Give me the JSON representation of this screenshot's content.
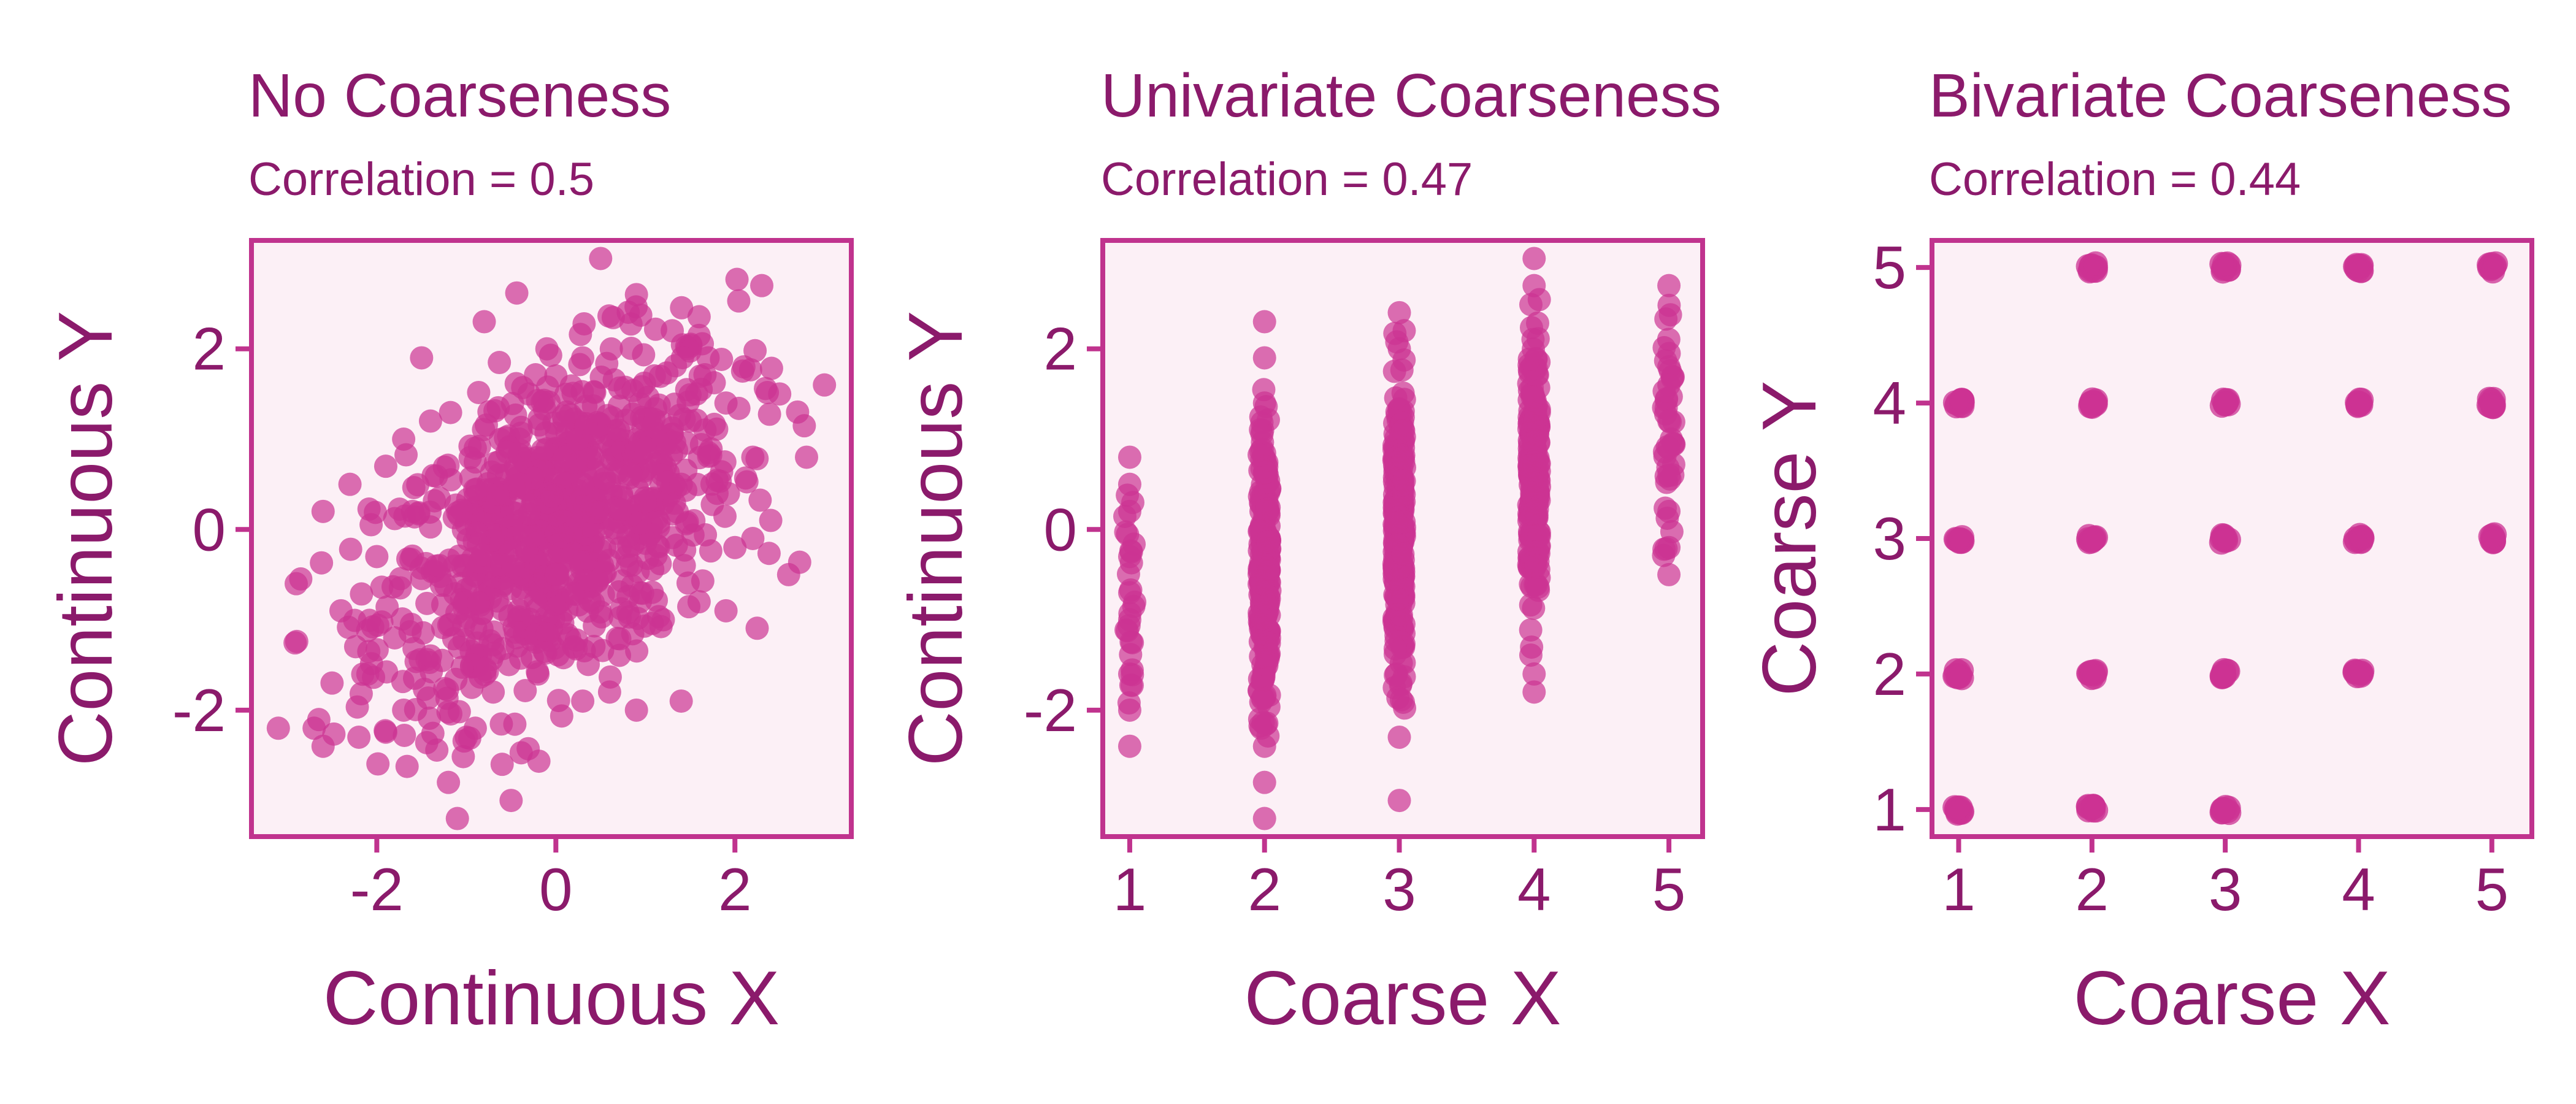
{
  "chart_data": [
    {
      "type": "scatter",
      "title": "No Coarseness",
      "subtitle": "Correlation = 0.5",
      "xlabel": "Continuous X",
      "ylabel": "Continuous Y",
      "xlim": [
        -3.4,
        3.3
      ],
      "ylim": [
        -3.4,
        3.2
      ],
      "xticks": [
        -2,
        0,
        2
      ],
      "yticks": [
        -2,
        0,
        2
      ],
      "xtick_labels": [
        "-2",
        "0",
        "2"
      ],
      "ytick_labels": [
        "-2",
        "0",
        "2"
      ],
      "point_color": "#cc3393",
      "points": [
        [
          -3.1,
          -2.2
        ],
        [
          -2.9,
          -0.6
        ],
        [
          -2.7,
          -2.2
        ],
        [
          -2.6,
          -2.4
        ],
        [
          -2.5,
          -1.7
        ],
        [
          -2.4,
          -0.9
        ],
        [
          -2.2,
          -2.3
        ],
        [
          -2.1,
          -1.6
        ],
        [
          -2.0,
          -0.3
        ],
        [
          -1.9,
          0.7
        ],
        [
          -1.8,
          -1.2
        ],
        [
          -1.7,
          -2.0
        ],
        [
          -1.6,
          0.2
        ],
        [
          -1.5,
          1.9
        ],
        [
          -1.4,
          -1.4
        ],
        [
          -1.3,
          -0.4
        ],
        [
          -1.2,
          -2.8
        ],
        [
          -1.1,
          -3.2
        ],
        [
          -1.0,
          -2.3
        ],
        [
          -0.9,
          0.9
        ],
        [
          -0.8,
          2.3
        ],
        [
          -0.7,
          -1.8
        ],
        [
          -0.6,
          -0.1
        ],
        [
          -0.5,
          -3.0
        ],
        [
          -0.4,
          0.5
        ],
        [
          -0.3,
          1.5
        ],
        [
          -0.2,
          -1.6
        ],
        [
          -0.1,
          2.0
        ],
        [
          0.0,
          -0.5
        ],
        [
          0.1,
          0.8
        ],
        [
          0.2,
          -1.3
        ],
        [
          0.3,
          1.9
        ],
        [
          0.4,
          0.2
        ],
        [
          0.5,
          3.0
        ],
        [
          0.6,
          -1.8
        ],
        [
          0.7,
          1.1
        ],
        [
          0.8,
          -0.4
        ],
        [
          0.9,
          2.6
        ],
        [
          1.0,
          0.9
        ],
        [
          1.1,
          1.7
        ],
        [
          1.2,
          -1.0
        ],
        [
          1.3,
          2.2
        ],
        [
          1.4,
          0.5
        ],
        [
          1.5,
          1.2
        ],
        [
          1.6,
          -0.8
        ],
        [
          1.7,
          1.9
        ],
        [
          1.8,
          0.4
        ],
        [
          1.9,
          1.4
        ],
        [
          2.0,
          -0.2
        ],
        [
          2.1,
          1.8
        ],
        [
          2.2,
          0.8
        ],
        [
          2.3,
          2.7
        ],
        [
          2.4,
          0.1
        ],
        [
          2.5,
          1.5
        ],
        [
          2.6,
          -0.5
        ],
        [
          2.7,
          1.3
        ],
        [
          2.8,
          0.8
        ],
        [
          3.0,
          1.6
        ],
        [
          -2.3,
          0.5
        ],
        [
          -1.4,
          1.2
        ],
        [
          0.9,
          -2.0
        ],
        [
          1.9,
          -0.9
        ],
        [
          -0.6,
          -2.6
        ],
        [
          0.0,
          1.7
        ],
        [
          1.4,
          -1.9
        ],
        [
          -2.6,
          0.2
        ],
        [
          -0.9,
          -2.2
        ],
        [
          2.2,
          -0.1
        ],
        [
          -1.7,
          1.0
        ],
        [
          0.3,
          -1.9
        ]
      ]
    },
    {
      "type": "scatter",
      "title": "Univariate Coarseness",
      "subtitle": "Correlation = 0.47",
      "xlabel": "Coarse X",
      "ylabel": "Continuous Y",
      "xlim": [
        0.8,
        5.25
      ],
      "ylim": [
        -3.4,
        3.2
      ],
      "xticks": [
        1,
        2,
        3,
        4,
        5
      ],
      "yticks": [
        -2,
        0,
        2
      ],
      "xtick_labels": [
        "1",
        "2",
        "3",
        "4",
        "5"
      ],
      "ytick_labels": [
        "-2",
        "0",
        "2"
      ],
      "point_color": "#cc3393",
      "points": [
        [
          1,
          0.8
        ],
        [
          1,
          0.5
        ],
        [
          1,
          0.2
        ],
        [
          1,
          -0.3
        ],
        [
          1,
          -0.7
        ],
        [
          1,
          -1.0
        ],
        [
          1,
          -1.6
        ],
        [
          1,
          -2.0
        ],
        [
          1,
          -2.4
        ],
        [
          2,
          2.3
        ],
        [
          2,
          1.9
        ],
        [
          2,
          1.4
        ],
        [
          2,
          -2.4
        ],
        [
          2,
          -2.8
        ],
        [
          2,
          -3.2
        ],
        [
          3,
          2.4
        ],
        [
          3,
          2.0
        ],
        [
          3,
          -2.3
        ],
        [
          3,
          -3.0
        ],
        [
          4,
          3.0
        ],
        [
          4,
          2.7
        ],
        [
          4,
          -1.6
        ],
        [
          4,
          -1.8
        ],
        [
          5,
          2.7
        ],
        [
          5,
          1.8
        ],
        [
          5,
          1.6
        ],
        [
          5,
          1.2
        ],
        [
          5,
          0.9
        ],
        [
          5,
          0.6
        ],
        [
          5,
          0.2
        ],
        [
          5,
          -0.2
        ],
        [
          5,
          -0.5
        ]
      ]
    },
    {
      "type": "scatter",
      "title": "Bivariate Coarseness",
      "subtitle": "Correlation = 0.44",
      "xlabel": "Coarse X",
      "ylabel": "Coarse Y",
      "xlim": [
        0.8,
        5.3
      ],
      "ylim": [
        0.8,
        5.2
      ],
      "xticks": [
        1,
        2,
        3,
        4,
        5
      ],
      "yticks": [
        1,
        2,
        3,
        4,
        5
      ],
      "xtick_labels": [
        "1",
        "2",
        "3",
        "4",
        "5"
      ],
      "ytick_labels": [
        "1",
        "2",
        "3",
        "4",
        "5"
      ],
      "point_color": "#cc3393",
      "points": [
        [
          1,
          1
        ],
        [
          1,
          2
        ],
        [
          1,
          3
        ],
        [
          1,
          4
        ],
        [
          2,
          1
        ],
        [
          2,
          2
        ],
        [
          2,
          3
        ],
        [
          2,
          4
        ],
        [
          2,
          5
        ],
        [
          3,
          1
        ],
        [
          3,
          2
        ],
        [
          3,
          3
        ],
        [
          3,
          4
        ],
        [
          3,
          5
        ],
        [
          4,
          2
        ],
        [
          4,
          3
        ],
        [
          4,
          4
        ],
        [
          4,
          5
        ],
        [
          5,
          3
        ],
        [
          5,
          4
        ],
        [
          5,
          5
        ]
      ]
    }
  ]
}
